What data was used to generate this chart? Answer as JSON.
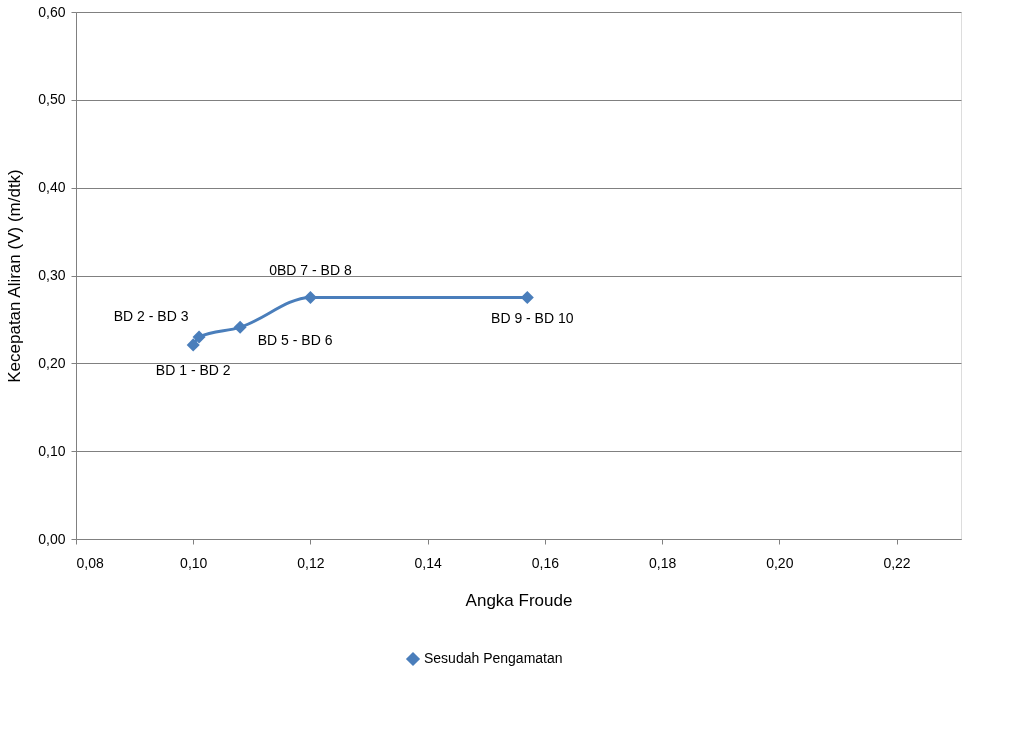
{
  "chart_data": {
    "type": "line",
    "xlabel": "Angka Froude",
    "ylabel": "Kecepatan Aliran  (V) (m/dtk)",
    "series": [
      {
        "name": "Sesudah Pengamatan",
        "color": "#4a7ebb",
        "x": [
          0.1,
          0.101,
          0.108,
          0.12,
          0.157
        ],
        "values": [
          0.221,
          0.23,
          0.241,
          0.275,
          0.275
        ]
      }
    ],
    "annotations": [
      {
        "text": "BD 1 - BD 2",
        "x": 0.1,
        "y": 0.221
      },
      {
        "text": "BD 2 - BD 3",
        "x": 0.101,
        "y": 0.23
      },
      {
        "text": "BD 5 - BD 6",
        "x": 0.108,
        "y": 0.241
      },
      {
        "text": "0BD 7 - BD 8",
        "x": 0.12,
        "y": 0.275
      },
      {
        "text": "BD 9 - BD 10",
        "x": 0.157,
        "y": 0.275
      }
    ],
    "xlim": [
      0.08,
      0.231
    ],
    "xticks": [
      {
        "value": 0.08,
        "label": "0,08"
      },
      {
        "value": 0.1,
        "label": "0,10"
      },
      {
        "value": 0.12,
        "label": "0,12"
      },
      {
        "value": 0.14,
        "label": "0,14"
      },
      {
        "value": 0.16,
        "label": "0,16"
      },
      {
        "value": 0.18,
        "label": "0,18"
      },
      {
        "value": 0.2,
        "label": "0,20"
      },
      {
        "value": 0.22,
        "label": "0,22"
      }
    ],
    "ylim": [
      0,
      0.6
    ],
    "yticks": [
      {
        "value": 0.0,
        "label": "0,00"
      },
      {
        "value": 0.1,
        "label": "0,10"
      },
      {
        "value": 0.2,
        "label": "0,20"
      },
      {
        "value": 0.3,
        "label": "0,30"
      },
      {
        "value": 0.4,
        "label": "0,40"
      },
      {
        "value": 0.5,
        "label": "0,50"
      },
      {
        "value": 0.6,
        "label": "0,60"
      }
    ],
    "grid": "y",
    "legend": "bottom",
    "marker": "diamond",
    "line_style": "solid"
  }
}
